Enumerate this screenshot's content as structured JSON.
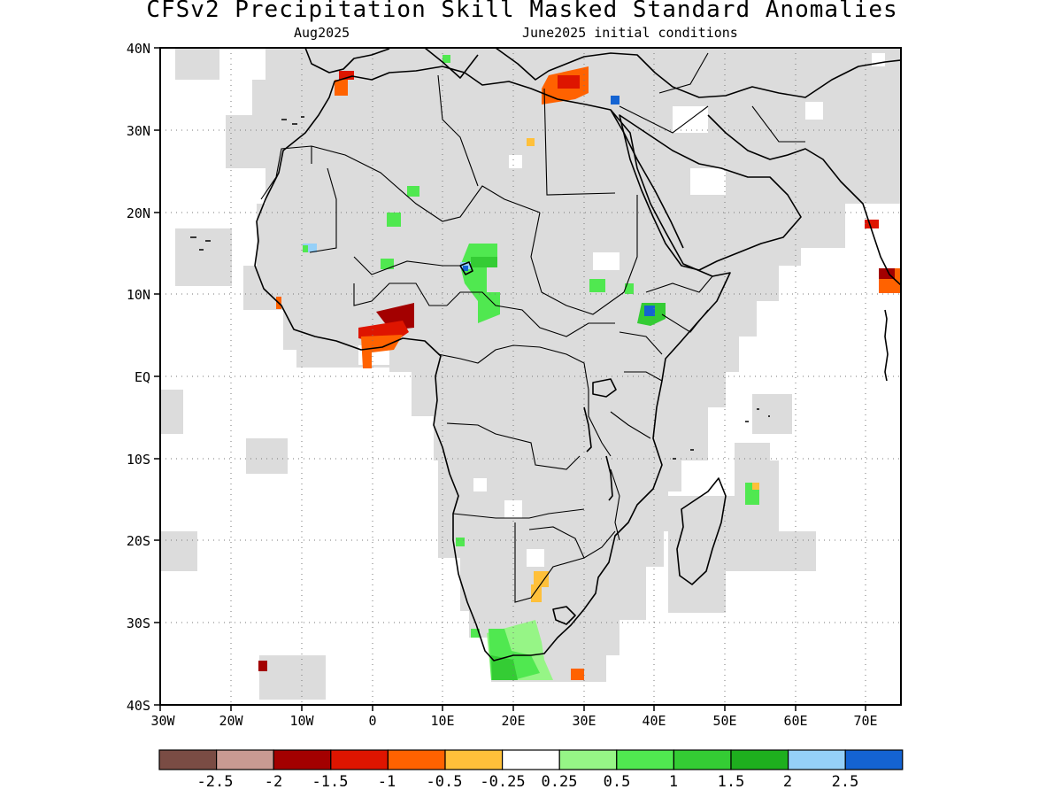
{
  "header": {
    "title": "CFSv2 Precipitation Skill Masked Standard Anomalies",
    "valid_month": "Aug2025",
    "initial_conditions": "June2025 initial conditions"
  },
  "axes": {
    "lat_labels": [
      "40N",
      "30N",
      "20N",
      "10N",
      "EQ",
      "10S",
      "20S",
      "30S",
      "40S"
    ],
    "lon_labels": [
      "30W",
      "20W",
      "10W",
      "0",
      "10E",
      "20E",
      "30E",
      "40E",
      "50E",
      "60E",
      "70E"
    ],
    "lat_range": [
      -40,
      40
    ],
    "lon_range": [
      -30,
      75
    ],
    "grid": "dotted"
  },
  "colorbar": {
    "colors": [
      "#7a4c44",
      "#c99a92",
      "#a30000",
      "#de1500",
      "#ff6200",
      "#ffc03a",
      "#ffffff",
      "#96f586",
      "#50e850",
      "#34cc34",
      "#1eaf1e",
      "#95d0f8",
      "#1463d2"
    ],
    "labels": [
      "-2.5",
      "-2",
      "-1.5",
      "-1",
      "-0.5",
      "-0.25",
      "0.25",
      "0.5",
      "1",
      "1.5",
      "2",
      "2.5"
    ]
  },
  "mask_color": "#dcdcdc",
  "coastline_color": "#000000"
}
